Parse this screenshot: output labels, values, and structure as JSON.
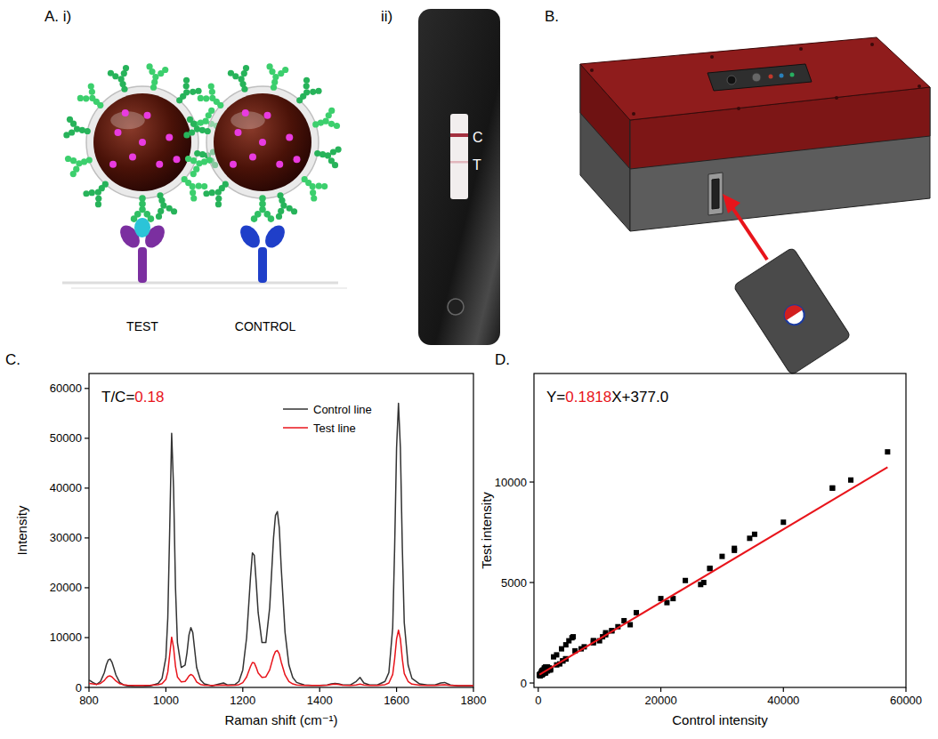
{
  "figure": {
    "panel_labels": {
      "a": "A. i)",
      "a_ii": "ii)",
      "b": "B.",
      "c": "C.",
      "d": "D."
    },
    "particles": {
      "test_label": "TEST",
      "control_label": "CONTROL"
    },
    "strip": {
      "control_line": "C",
      "test_line": "T"
    }
  },
  "chart_data": [
    {
      "type": "line",
      "x_label": "Raman shift (cm⁻¹)",
      "y_label": "Intensity",
      "x": [
        800,
        810,
        820,
        830,
        840,
        845,
        850,
        855,
        860,
        865,
        870,
        880,
        890,
        900,
        920,
        940,
        960,
        980,
        990,
        1000,
        1005,
        1010,
        1015,
        1020,
        1025,
        1030,
        1040,
        1050,
        1055,
        1060,
        1065,
        1070,
        1075,
        1080,
        1090,
        1100,
        1120,
        1140,
        1150,
        1160,
        1180,
        1190,
        1200,
        1210,
        1220,
        1225,
        1230,
        1235,
        1240,
        1250,
        1260,
        1270,
        1280,
        1285,
        1290,
        1295,
        1300,
        1310,
        1320,
        1330,
        1340,
        1360,
        1380,
        1400,
        1420,
        1430,
        1440,
        1450,
        1460,
        1480,
        1495,
        1505,
        1515,
        1530,
        1550,
        1570,
        1580,
        1590,
        1595,
        1600,
        1605,
        1610,
        1615,
        1620,
        1630,
        1640,
        1660,
        1680,
        1700,
        1715,
        1725,
        1740,
        1760,
        1780,
        1800
      ],
      "series": [
        {
          "name": "Control line",
          "color": "#333333",
          "values": [
            1500,
            1000,
            600,
            1200,
            3000,
            4500,
            5500,
            5700,
            5000,
            3800,
            2500,
            1000,
            500,
            300,
            200,
            200,
            300,
            800,
            1800,
            6000,
            14000,
            32000,
            51000,
            40000,
            20000,
            9000,
            4000,
            4500,
            7000,
            10500,
            12000,
            11000,
            7500,
            4000,
            1500,
            700,
            300,
            700,
            900,
            500,
            600,
            1200,
            3500,
            10000,
            22000,
            27000,
            26500,
            21000,
            15000,
            9000,
            9000,
            16000,
            30000,
            34500,
            35300,
            32000,
            24000,
            11000,
            4500,
            2000,
            1000,
            500,
            400,
            400,
            500,
            700,
            800,
            700,
            500,
            500,
            1200,
            2000,
            900,
            500,
            500,
            1200,
            3000,
            12000,
            28000,
            48000,
            57000,
            48000,
            28000,
            13000,
            4500,
            1800,
            700,
            500,
            500,
            900,
            1000,
            500,
            300,
            300,
            300
          ]
        },
        {
          "name": "Test line",
          "color": "#e8141b",
          "values": [
            800,
            700,
            600,
            800,
            1400,
            1900,
            2250,
            2300,
            2100,
            1700,
            1300,
            750,
            550,
            450,
            400,
            400,
            450,
            550,
            750,
            1600,
            3100,
            6600,
            10100,
            8000,
            4200,
            2100,
            1100,
            1200,
            1700,
            2300,
            2600,
            2400,
            1800,
            1100,
            600,
            450,
            380,
            450,
            500,
            420,
            430,
            550,
            950,
            2100,
            4200,
            5000,
            4900,
            4000,
            2900,
            2000,
            2100,
            3500,
            6300,
            7200,
            7400,
            6700,
            5100,
            2500,
            1200,
            700,
            500,
            400,
            400,
            400,
            450,
            600,
            650,
            600,
            450,
            400,
            500,
            650,
            500,
            400,
            400,
            550,
            900,
            2600,
            5700,
            9700,
            11500,
            9700,
            5700,
            2800,
            1200,
            650,
            450,
            400,
            400,
            500,
            550,
            400,
            360,
            360,
            360
          ]
        }
      ],
      "xlim": [
        800,
        1800
      ],
      "xticks": [
        800,
        1000,
        1200,
        1400,
        1600,
        1800
      ],
      "ylim": [
        0,
        63000
      ],
      "yticks": [
        0,
        10000,
        20000,
        30000,
        40000,
        50000,
        60000
      ],
      "legend": "upper right",
      "annotations": [
        {
          "text": "T/C=",
          "value": 0.18,
          "color": "#e8141b"
        }
      ]
    },
    {
      "type": "scatter",
      "x_label": "Control intensity",
      "y_label": "Test intensity",
      "x": [
        1500,
        1000,
        600,
        1200,
        3000,
        4500,
        5500,
        5700,
        5000,
        3800,
        2500,
        1000,
        500,
        300,
        200,
        200,
        300,
        800,
        1800,
        6000,
        14000,
        32000,
        51000,
        40000,
        20000,
        9000,
        4000,
        4500,
        7000,
        10500,
        12000,
        11000,
        7500,
        4000,
        1500,
        700,
        300,
        700,
        900,
        500,
        600,
        1200,
        3500,
        10000,
        22000,
        27000,
        26500,
        21000,
        15000,
        9000,
        9000,
        16000,
        30000,
        34500,
        35300,
        32000,
        24000,
        11000,
        4500,
        2000,
        1000,
        500,
        400,
        400,
        500,
        700,
        800,
        700,
        500,
        500,
        1200,
        2000,
        900,
        500,
        500,
        1200,
        3000,
        12000,
        28000,
        48000,
        57000,
        48000,
        28000,
        13000,
        4500,
        1800,
        700,
        500,
        500,
        900,
        1000,
        500,
        300,
        300,
        300
      ],
      "values": [
        800,
        700,
        600,
        800,
        1400,
        1900,
        2250,
        2300,
        2100,
        1700,
        1300,
        750,
        550,
        450,
        400,
        400,
        450,
        550,
        750,
        1600,
        3100,
        6600,
        10100,
        8000,
        4200,
        2100,
        1100,
        1200,
        1700,
        2300,
        2600,
        2400,
        1800,
        1100,
        600,
        450,
        380,
        450,
        500,
        420,
        430,
        550,
        950,
        2100,
        4200,
        5000,
        4900,
        4000,
        2900,
        2000,
        2100,
        3500,
        6300,
        7200,
        7400,
        6700,
        5100,
        2500,
        1200,
        700,
        500,
        400,
        400,
        400,
        450,
        600,
        650,
        600,
        450,
        400,
        500,
        650,
        500,
        400,
        400,
        550,
        900,
        2600,
        5700,
        9700,
        11500,
        9700,
        5700,
        2800,
        1200,
        650,
        450,
        400,
        400,
        500,
        550,
        400,
        360,
        360,
        360
      ],
      "color": "#000000",
      "marker": "square",
      "xlim": [
        -700,
        60000
      ],
      "xticks": [
        0,
        20000,
        40000,
        60000
      ],
      "ylim": [
        -220,
        15400
      ],
      "yticks": [
        0,
        5000,
        10000
      ],
      "fit": {
        "prefix": "Y=",
        "slope": 0.1818,
        "middle": "X+",
        "intercept": {
          "value": 377,
          "label": "377.0"
        },
        "color": "#e8141b"
      }
    }
  ]
}
